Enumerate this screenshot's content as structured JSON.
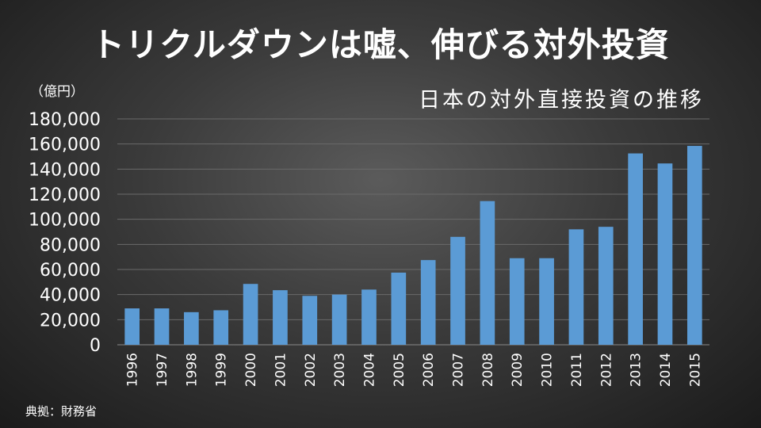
{
  "main_title": "トリクルダウンは嘘、伸びる対外投資",
  "unit_label": "（億円）",
  "source": "典拠：財務省",
  "colors": {
    "bar": "#5b9bd5",
    "grid": "#6a6a6a",
    "text": "#ffffff"
  },
  "chart_data": {
    "type": "bar",
    "title": "日本の対外直接投資の推移",
    "ylabel": "（億円）",
    "xlabel": "",
    "ylim": [
      0,
      180000
    ],
    "yticks": [
      "0",
      "20,000",
      "40,000",
      "60,000",
      "80,000",
      "100,000",
      "120,000",
      "140,000",
      "160,000",
      "180,000"
    ],
    "categories": [
      "1996",
      "1997",
      "1998",
      "1999",
      "2000",
      "2001",
      "2002",
      "2003",
      "2004",
      "2005",
      "2006",
      "2007",
      "2008",
      "2009",
      "2010",
      "2011",
      "2012",
      "2013",
      "2014",
      "2015"
    ],
    "values": [
      29000,
      29000,
      26000,
      27500,
      48500,
      43500,
      39000,
      40000,
      44000,
      57500,
      67500,
      86000,
      114500,
      69000,
      69000,
      92000,
      94000,
      152500,
      144500,
      158500
    ],
    "grid": true,
    "legend": "none"
  }
}
